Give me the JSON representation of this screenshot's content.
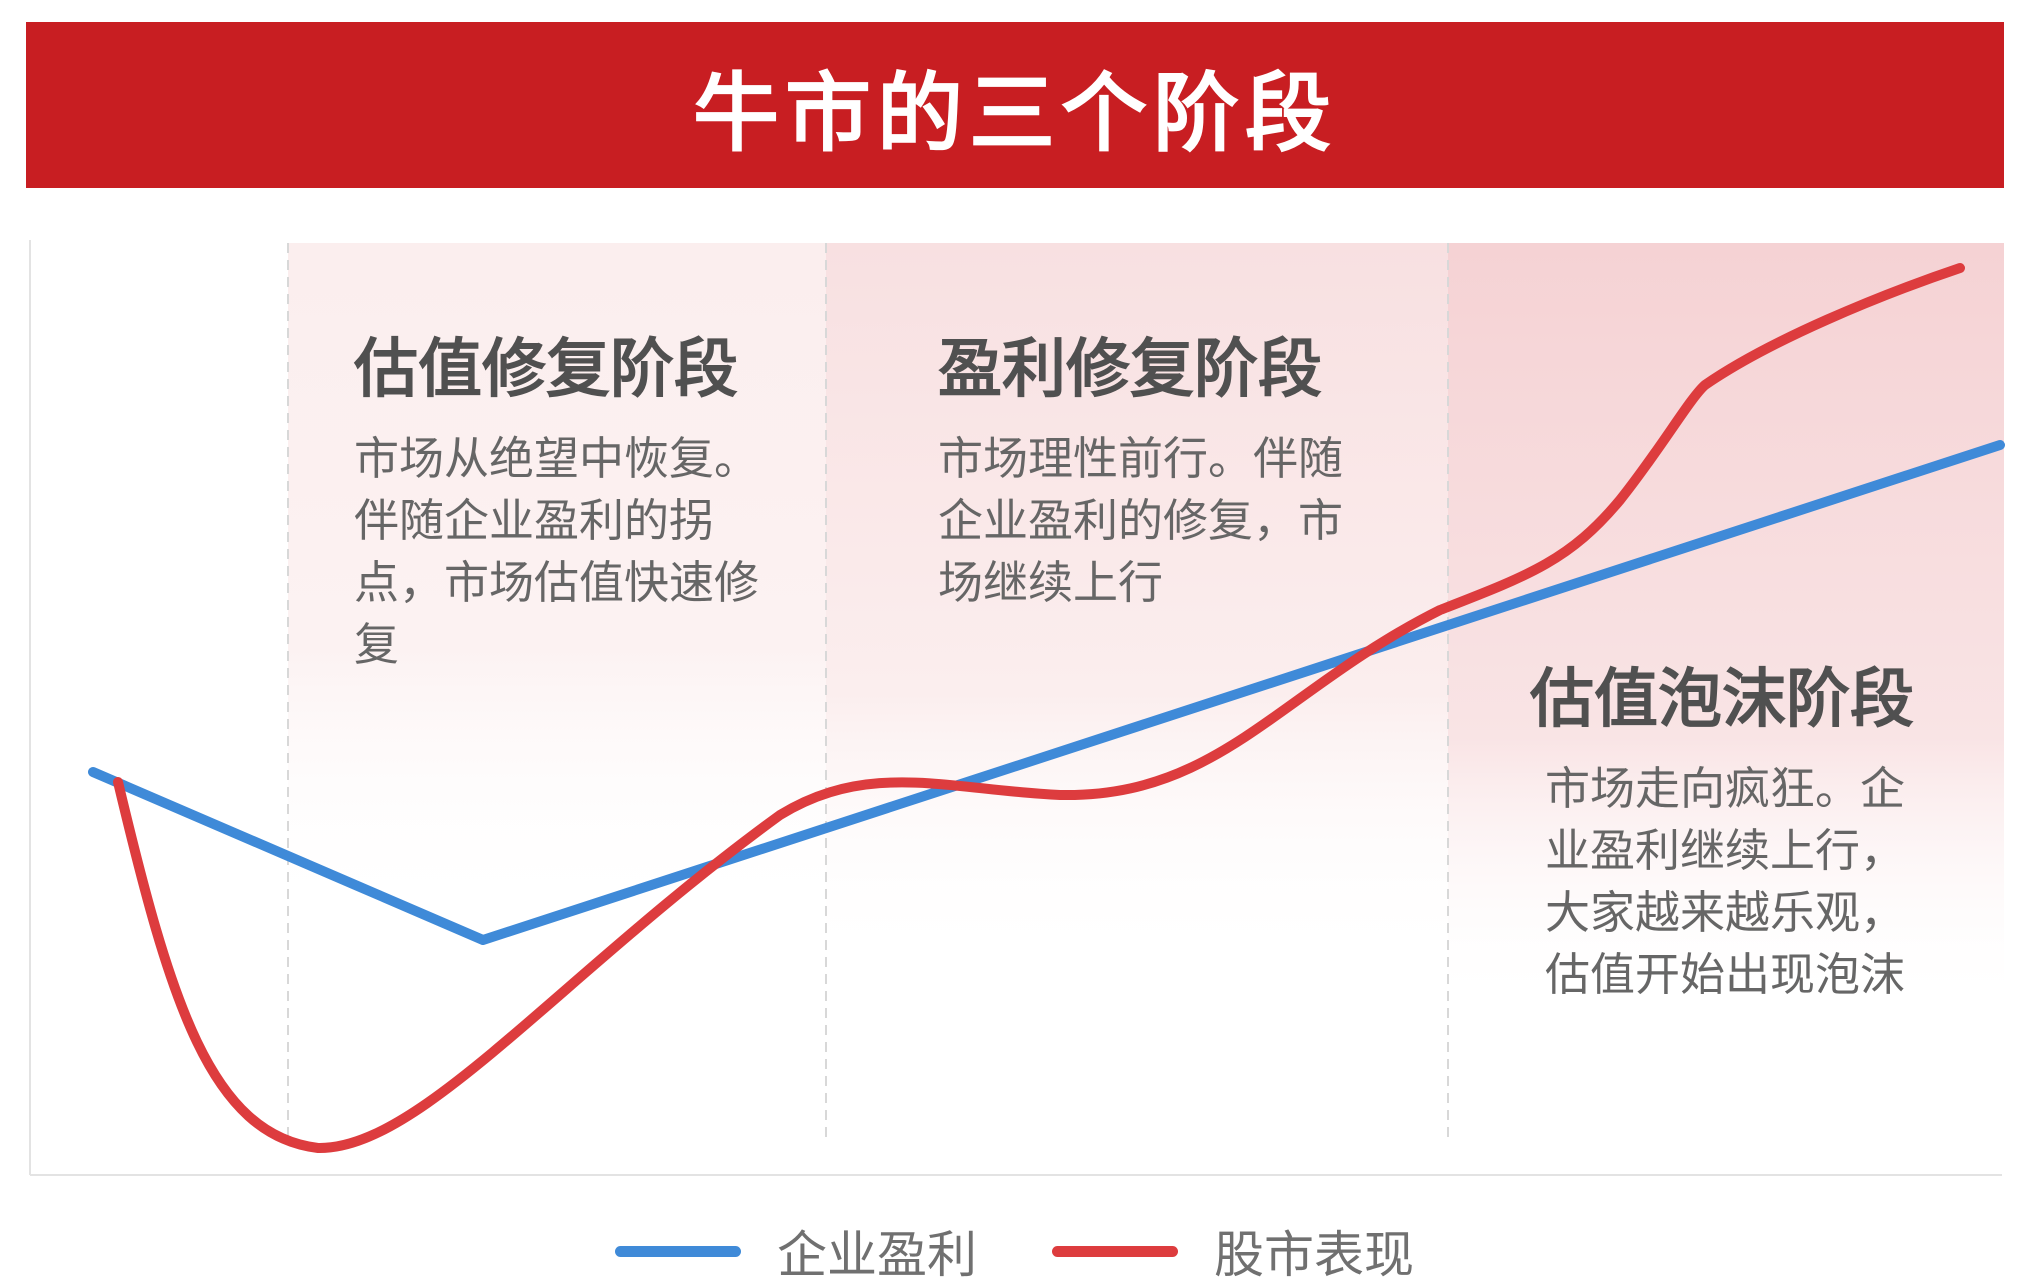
{
  "title": "牛市的三个阶段",
  "phases": [
    {
      "title": "估值修复阶段",
      "desc": "市场从绝望中恢复。伴随企业盈利的拐点，市场估值快速修复"
    },
    {
      "title": "盈利修复阶段",
      "desc": "市场理性前行。伴随企业盈利的修复，市场继续上行"
    },
    {
      "title": "估值泡沫阶段",
      "desc": "市场走向疯狂。企业盈利继续上行，大家越来越乐观，估值开始出现泡沫"
    }
  ],
  "legend": {
    "earnings": "企业盈利",
    "stock": "股市表现"
  },
  "colors": {
    "title_bg": "#c81e22",
    "earnings": "#3f8ad8",
    "stock": "#dd3c3e",
    "band1": "#fbeeee",
    "band2": "#f8e0e1",
    "band3": "#f5d2d4"
  }
}
